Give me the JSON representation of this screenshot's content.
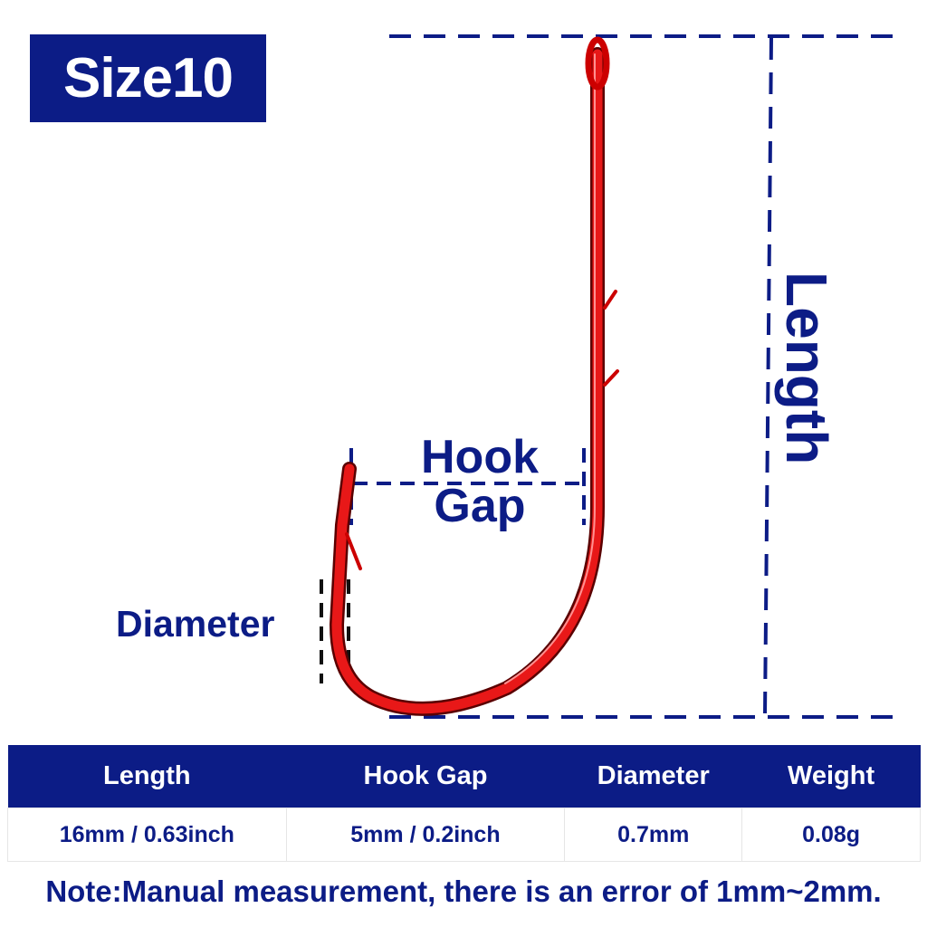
{
  "size_badge": "Size10",
  "labels": {
    "hook_gap": [
      "Hook",
      "Gap"
    ],
    "diameter": "Diameter",
    "length": "Length"
  },
  "colors": {
    "navy": "#0c1c86",
    "hook_red": "#e01010"
  },
  "table": {
    "headers": [
      "Length",
      "Hook Gap",
      "Diameter",
      "Weight"
    ],
    "values": [
      "16mm / 0.63inch",
      "5mm / 0.2inch",
      "0.7mm",
      "0.08g"
    ]
  },
  "note": "Note:Manual measurement, there is an error of 1mm~2mm."
}
